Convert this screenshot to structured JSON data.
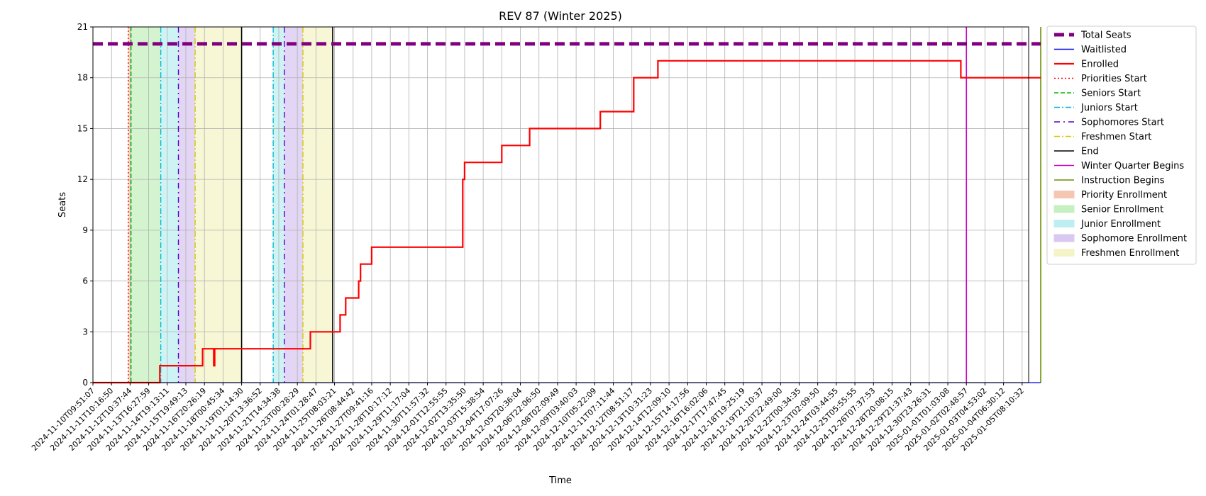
{
  "chart_data": {
    "type": "line",
    "title": "REV 87 (Winter 2025)",
    "xlabel": "Time",
    "ylabel": "Seats",
    "ylim": [
      0,
      21
    ],
    "yticks": [
      0,
      3,
      6,
      9,
      12,
      15,
      18,
      21
    ],
    "grid": true,
    "legend_position": "outside-right",
    "x_tick_labels": [
      "2024-11-10T09:51:07",
      "2024-11-11T10:16:50",
      "2024-11-12T10:37:44",
      "2024-11-13T16:27:59",
      "2024-11-14T19:13:11",
      "2024-11-15T19:49:13",
      "2024-11-16T20:26:19",
      "2024-11-18T00:45:34",
      "2024-11-19T01:14:30",
      "2024-11-20T13:36:52",
      "2024-11-21T14:34:38",
      "2024-11-23T00:28:29",
      "2024-11-24T01:28:47",
      "2024-11-25T08:03:21",
      "2024-11-26T08:44:42",
      "2024-11-27T09:41:16",
      "2024-11-28T10:17:12",
      "2024-11-29T11:17:04",
      "2024-11-30T11:57:32",
      "2024-12-01T12:55:55",
      "2024-12-02T13:35:50",
      "2024-12-03T15:38:54",
      "2024-12-04T17:07:26",
      "2024-12-05T20:36:04",
      "2024-12-06T22:06:50",
      "2024-12-08T02:09:49",
      "2024-12-09T03:40:03",
      "2024-12-10T05:22:09",
      "2024-12-11T07:11:44",
      "2024-12-12T08:51:17",
      "2024-12-13T10:31:23",
      "2024-12-14T12:09:10",
      "2024-12-15T14:17:56",
      "2024-12-16T16:02:06",
      "2024-12-17T17:47:45",
      "2024-12-18T19:25:19",
      "2024-12-19T21:10:37",
      "2024-12-20T22:49:00",
      "2024-12-22T00:34:35",
      "2024-12-23T02:09:50",
      "2024-12-24T03:44:55",
      "2024-12-25T05:55:55",
      "2024-12-26T07:37:53",
      "2024-12-28T20:08:15",
      "2024-12-29T21:37:43",
      "2024-12-30T23:26:31",
      "2025-01-01T01:03:08",
      "2025-01-02T02:48:57",
      "2025-01-03T04:53:02",
      "2025-01-04T06:30:12",
      "2025-01-05T08:10:32"
    ],
    "series": [
      {
        "name": "Total Seats",
        "color": "#800080",
        "style": "dashed-thick",
        "points": [
          [
            0,
            20
          ],
          [
            51,
            20
          ]
        ]
      },
      {
        "name": "Waitlisted",
        "color": "#0000ff",
        "style": "solid",
        "points": [
          [
            0,
            0
          ],
          [
            51,
            0
          ]
        ]
      },
      {
        "name": "Enrolled",
        "color": "#ff0000",
        "style": "solid-thick",
        "points": [
          [
            0,
            0
          ],
          [
            3.6,
            0
          ],
          [
            3.6,
            1
          ],
          [
            5.9,
            1
          ],
          [
            5.9,
            2
          ],
          [
            6.5,
            2
          ],
          [
            6.5,
            1
          ],
          [
            6.55,
            1
          ],
          [
            6.55,
            2
          ],
          [
            11.7,
            2
          ],
          [
            11.7,
            3
          ],
          [
            13.3,
            3
          ],
          [
            13.3,
            4
          ],
          [
            13.6,
            4
          ],
          [
            13.6,
            5
          ],
          [
            14.3,
            5
          ],
          [
            14.3,
            6
          ],
          [
            14.4,
            6
          ],
          [
            14.4,
            7
          ],
          [
            15.0,
            7
          ],
          [
            15.0,
            8
          ],
          [
            19.9,
            8
          ],
          [
            19.9,
            12
          ],
          [
            20.0,
            12
          ],
          [
            20.0,
            13
          ],
          [
            22.0,
            13
          ],
          [
            22.0,
            14
          ],
          [
            23.5,
            14
          ],
          [
            23.5,
            15
          ],
          [
            27.3,
            15
          ],
          [
            27.3,
            16
          ],
          [
            29.1,
            16
          ],
          [
            29.1,
            18
          ],
          [
            30.4,
            18
          ],
          [
            30.4,
            19
          ],
          [
            46.7,
            19
          ],
          [
            46.7,
            18
          ],
          [
            51,
            18
          ]
        ]
      }
    ],
    "markers": [
      {
        "name": "Priorities Start",
        "color": "#ff0000",
        "style": "dotted",
        "x": 1.9
      },
      {
        "name": "Seniors Start",
        "color": "#00bb00",
        "style": "dashed",
        "x": 2.05
      },
      {
        "name": "Juniors Start",
        "color": "#00bcd4",
        "style": "dashdot",
        "x": 3.65
      },
      {
        "name": "Juniors Start",
        "color": "#00bcd4",
        "style": "dashdot",
        "x": 9.7
      },
      {
        "name": "Sophomores Start",
        "color": "#5500cc",
        "style": "dashdot-sparse",
        "x": 4.6
      },
      {
        "name": "Sophomores Start",
        "color": "#5500cc",
        "style": "dashdot-sparse",
        "x": 10.3
      },
      {
        "name": "Freshmen Start",
        "color": "#d4c800",
        "style": "dashdot",
        "x": 5.5
      },
      {
        "name": "Freshmen Start",
        "color": "#d4c800",
        "style": "dashdot",
        "x": 11.3
      },
      {
        "name": "End",
        "color": "#000000",
        "style": "solid",
        "x": 8.0
      },
      {
        "name": "End",
        "color": "#000000",
        "style": "solid",
        "x": 12.9
      },
      {
        "name": "Winter Quarter Begins",
        "color": "#cc00cc",
        "style": "solid",
        "x": 47.0
      },
      {
        "name": "Instruction Begins",
        "color": "#6b8e00",
        "style": "solid",
        "x": 51.0
      }
    ],
    "spans": [
      {
        "name": "Priority Enrollment",
        "color": "#f4c7b3",
        "from": 1.9,
        "to": 2.05
      },
      {
        "name": "Senior Enrollment",
        "color": "#c6f0c0",
        "from": 2.05,
        "to": 3.65
      },
      {
        "name": "Junior Enrollment",
        "color": "#bdeff2",
        "from": 3.65,
        "to": 4.6
      },
      {
        "name": "Sophomore Enrollment",
        "color": "#d9c8f0",
        "from": 4.6,
        "to": 5.5
      },
      {
        "name": "Freshmen Enrollment",
        "color": "#f4f4c8",
        "from": 5.5,
        "to": 8.0
      },
      {
        "name": "Junior Enrollment",
        "color": "#bdeff2",
        "from": 9.7,
        "to": 10.3
      },
      {
        "name": "Sophomore Enrollment",
        "color": "#d9c8f0",
        "from": 10.3,
        "to": 11.3
      },
      {
        "name": "Freshmen Enrollment",
        "color": "#f4f4c8",
        "from": 11.3,
        "to": 12.9
      }
    ],
    "legend": [
      {
        "label": "Total Seats",
        "color": "#800080",
        "kind": "dashed-thick"
      },
      {
        "label": "Waitlisted",
        "color": "#0000ff",
        "kind": "line"
      },
      {
        "label": "Enrolled",
        "color": "#ff0000",
        "kind": "line-thick"
      },
      {
        "label": "Priorities Start",
        "color": "#ff0000",
        "kind": "dotted"
      },
      {
        "label": "Seniors Start",
        "color": "#00bb00",
        "kind": "dashed"
      },
      {
        "label": "Juniors Start",
        "color": "#00bcd4",
        "kind": "dashdot"
      },
      {
        "label": "Sophomores Start",
        "color": "#5500cc",
        "kind": "dashdot-sparse"
      },
      {
        "label": "Freshmen Start",
        "color": "#d4c800",
        "kind": "dashdot"
      },
      {
        "label": "End",
        "color": "#000000",
        "kind": "line"
      },
      {
        "label": "Winter Quarter Begins",
        "color": "#cc00cc",
        "kind": "line"
      },
      {
        "label": "Instruction Begins",
        "color": "#6b8e00",
        "kind": "line"
      },
      {
        "label": "Priority Enrollment",
        "color": "#f4c7b3",
        "kind": "patch"
      },
      {
        "label": "Senior Enrollment",
        "color": "#c6f0c0",
        "kind": "patch"
      },
      {
        "label": "Junior Enrollment",
        "color": "#bdeff2",
        "kind": "patch"
      },
      {
        "label": "Sophomore Enrollment",
        "color": "#d9c8f0",
        "kind": "patch"
      },
      {
        "label": "Freshmen Enrollment",
        "color": "#f4f4c8",
        "kind": "patch"
      }
    ]
  }
}
